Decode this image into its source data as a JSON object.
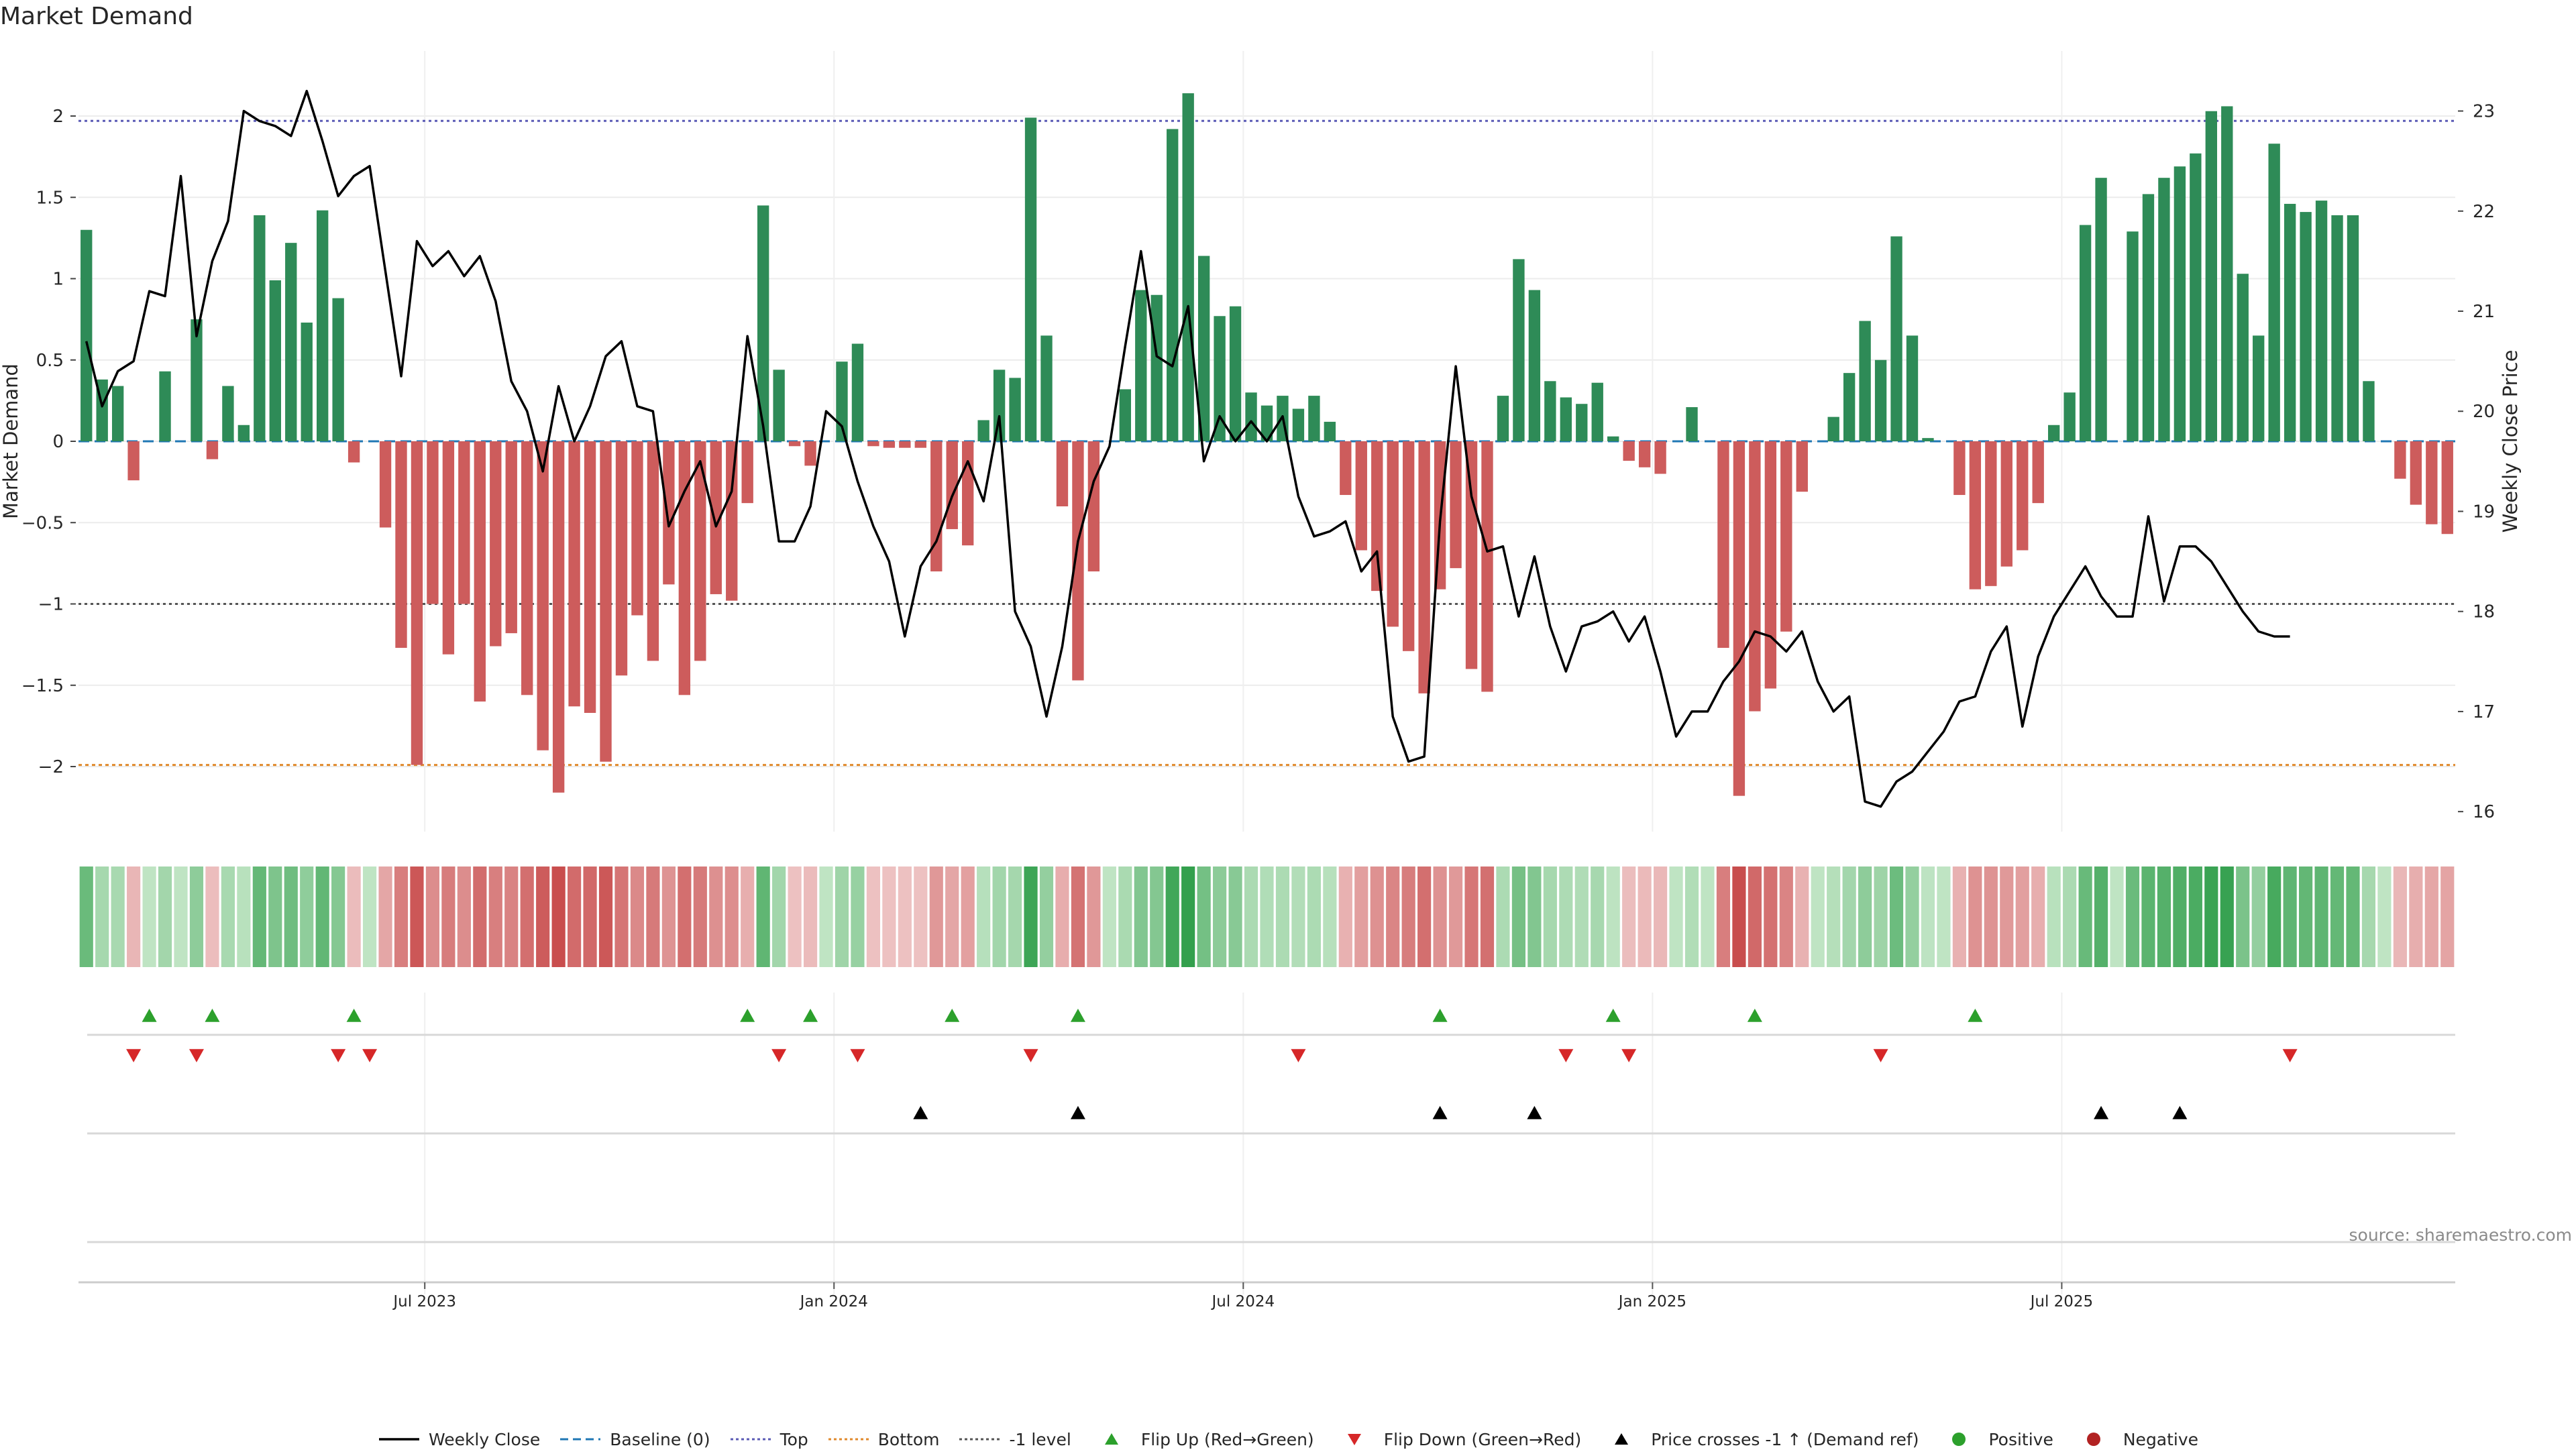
{
  "title": "Market Demand",
  "source": "source: sharemaestro.com",
  "colors": {
    "green": "#2e8b57",
    "red": "#cd5c5c",
    "price": "#000000",
    "baseline": "#1f77b4",
    "top": "#5b5bb5",
    "bottom": "#e08a2c",
    "minus1": "#555555",
    "flip_up": "#2ca02c",
    "flip_down": "#d62728",
    "cross": "#000000",
    "positive": "#2ca02c",
    "negative": "#b22222"
  },
  "chart_data": {
    "type": "bar",
    "title": "Market Demand",
    "ylabel": "Market Demand",
    "y2label": "Weekly Close Price",
    "ylim": [
      -2.4,
      2.4
    ],
    "y2lim": [
      15.8,
      23.6
    ],
    "yticks": [
      "2",
      "1.5",
      "1",
      "0.5",
      "0",
      "−0.5",
      "−1",
      "−1.5",
      "−2"
    ],
    "ytick_values": [
      2,
      1.5,
      1,
      0.5,
      0,
      -0.5,
      -1,
      -1.5,
      -2
    ],
    "y2ticks": [
      "23",
      "22",
      "21",
      "20",
      "19",
      "18",
      "17",
      "16"
    ],
    "y2tick_values": [
      23,
      22,
      21,
      20,
      19,
      18,
      17,
      16
    ],
    "xtick_labels": [
      "Jul 2023",
      "Jan 2024",
      "Jul 2024",
      "Jan 2025",
      "Jul 2025"
    ],
    "xtick_weeks": [
      22,
      48,
      74,
      100,
      126
    ],
    "reference_lines": {
      "top": 1.97,
      "bottom": -1.99,
      "minus1": -1.0,
      "baseline": 0
    },
    "demand": [
      1.3,
      0.38,
      0.34,
      -0.24,
      0,
      0.43,
      0,
      0.75,
      -0.11,
      0.34,
      0.1,
      1.39,
      0.99,
      1.22,
      0.73,
      1.42,
      0.88,
      -0.13,
      0,
      -0.53,
      -1.27,
      -1.99,
      -1.0,
      -1.31,
      -1.0,
      -1.6,
      -1.26,
      -1.18,
      -1.56,
      -1.9,
      -2.16,
      -1.63,
      -1.67,
      -1.97,
      -1.44,
      -1.07,
      -1.35,
      -0.88,
      -1.56,
      -1.35,
      -0.94,
      -0.98,
      -0.38,
      1.45,
      0.44,
      -0.03,
      -0.15,
      0,
      0.49,
      0.6,
      -0.03,
      -0.04,
      -0.04,
      -0.04,
      -0.8,
      -0.54,
      -0.64,
      0.13,
      0.44,
      0.39,
      1.99,
      0.65,
      -0.4,
      -1.47,
      -0.8,
      0,
      0.32,
      0.93,
      0.9,
      1.92,
      2.14,
      1.14,
      0.77,
      0.83,
      0.3,
      0.22,
      0.28,
      0.2,
      0.28,
      0.12,
      -0.33,
      -0.67,
      -0.92,
      -1.14,
      -1.29,
      -1.55,
      -0.91,
      -0.78,
      -1.4,
      -1.54,
      0.28,
      1.12,
      0.93,
      0.37,
      0.27,
      0.23,
      0.36,
      0.03,
      -0.12,
      -0.16,
      -0.2,
      0,
      0.21,
      0,
      -1.27,
      -2.18,
      -1.66,
      -1.52,
      -1.17,
      -0.31,
      0,
      0.15,
      0.42,
      0.74,
      0.5,
      1.26,
      0.65,
      0.02,
      0,
      -0.33,
      -0.91,
      -0.89,
      -0.77,
      -0.67,
      -0.38,
      0.1,
      0.3,
      1.33,
      1.62,
      0,
      1.29,
      1.52,
      1.62,
      1.69,
      1.77,
      2.03,
      2.06,
      1.03,
      0.65,
      1.83,
      1.46,
      1.41,
      1.48,
      1.39,
      1.39,
      0.37,
      0,
      -0.23,
      -0.39,
      -0.51,
      -0.57
    ],
    "price": [
      20.7,
      20.05,
      20.4,
      20.5,
      21.2,
      21.15,
      22.35,
      20.75,
      21.5,
      21.9,
      23.0,
      22.9,
      22.85,
      22.75,
      23.2,
      22.7,
      22.15,
      22.35,
      22.45,
      21.4,
      20.35,
      21.7,
      21.45,
      21.6,
      21.35,
      21.55,
      21.1,
      20.3,
      20.0,
      19.4,
      20.25,
      19.7,
      20.05,
      20.55,
      20.7,
      20.05,
      20.0,
      18.85,
      19.2,
      19.5,
      18.85,
      19.2,
      20.75,
      19.85,
      18.7,
      18.7,
      19.05,
      20.0,
      19.85,
      19.3,
      18.85,
      18.5,
      17.75,
      18.45,
      18.7,
      19.15,
      19.5,
      19.1,
      19.95,
      18.0,
      17.65,
      16.95,
      17.65,
      18.7,
      19.3,
      19.65,
      20.65,
      21.6,
      20.55,
      20.45,
      21.05,
      19.5,
      19.95,
      19.7,
      19.9,
      19.7,
      19.95,
      19.15,
      18.75,
      18.8,
      18.9,
      18.4,
      18.6,
      16.95,
      16.5,
      16.55,
      18.9,
      20.45,
      19.15,
      18.6,
      18.65,
      17.95,
      18.55,
      17.85,
      17.4,
      17.85,
      17.9,
      18.0,
      17.7,
      17.95,
      17.4,
      16.75,
      17.0,
      17.0,
      17.3,
      17.5,
      17.8,
      17.75,
      17.6,
      17.8,
      17.3,
      17.0,
      17.15,
      16.1,
      16.05,
      16.3,
      16.4,
      16.6,
      16.8,
      17.1,
      17.15,
      17.6,
      17.85,
      16.85,
      17.55,
      17.95,
      18.2,
      18.45,
      18.15,
      17.95,
      17.95,
      18.95,
      18.1,
      18.65,
      18.65,
      18.5,
      18.25,
      18.0,
      17.8,
      17.75,
      17.75
    ],
    "flip_up_weeks": [
      4,
      8,
      17,
      42,
      46,
      55,
      63,
      86,
      97,
      106,
      120
    ],
    "flip_down_weeks": [
      3,
      7,
      16,
      18,
      44,
      49,
      60,
      77,
      94,
      98,
      114,
      140
    ],
    "cross_weeks": [
      53,
      63,
      86,
      92,
      128,
      133
    ]
  },
  "legend": [
    {
      "label": "Weekly Close",
      "symbol": "solid-line"
    },
    {
      "label": "Baseline (0)",
      "symbol": "dashed-line"
    },
    {
      "label": "Top",
      "symbol": "dotted-line"
    },
    {
      "label": "Bottom",
      "symbol": "dotted-line"
    },
    {
      "label": "-1 level",
      "symbol": "dotted-line"
    },
    {
      "label": "Flip Up (Red→Green)",
      "symbol": "triangle-up"
    },
    {
      "label": "Flip Down (Green→Red)",
      "symbol": "triangle-down"
    },
    {
      "label": "Price crosses -1 ↑ (Demand ref)",
      "symbol": "triangle-up"
    },
    {
      "label": "Positive",
      "symbol": "circle"
    },
    {
      "label": "Negative",
      "symbol": "circle"
    }
  ]
}
